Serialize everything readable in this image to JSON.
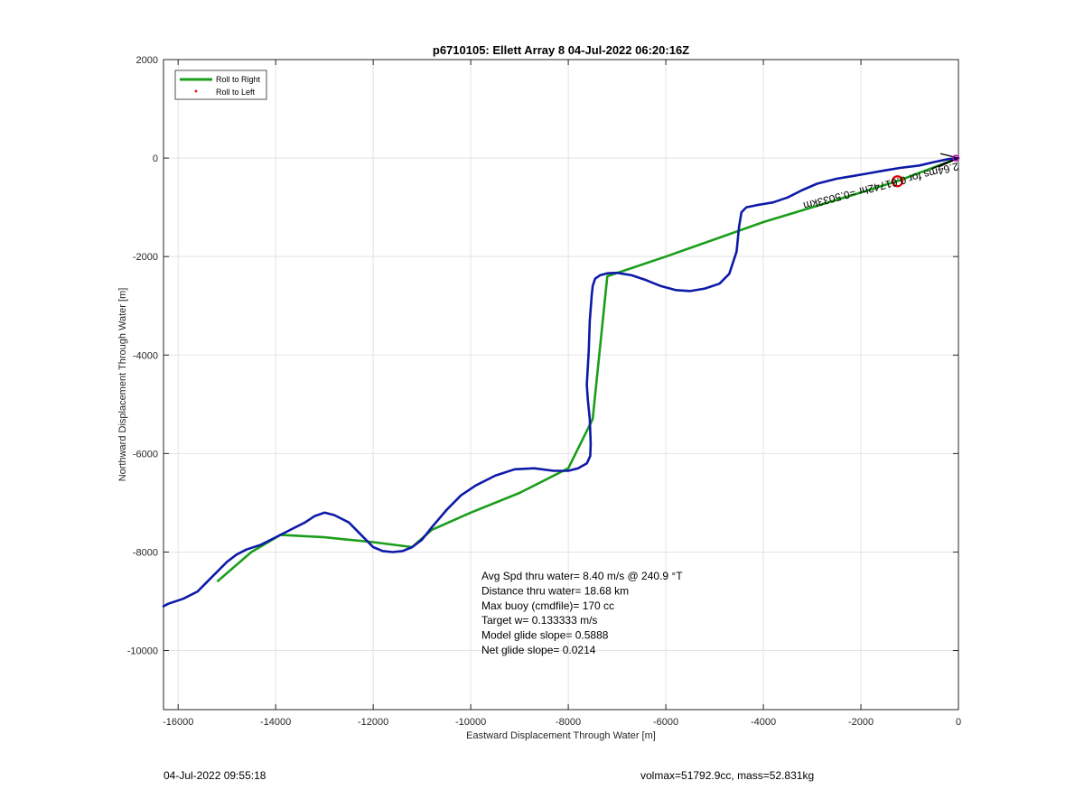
{
  "chart_data": {
    "type": "line",
    "title": "p6710105: Ellett Array 8 04-Jul-2022 06:20:16Z",
    "xlabel": "Eastward Displacement Through Water [m]",
    "ylabel": "Northward Displacement Through Water [m]",
    "xlim": [
      -16300,
      0
    ],
    "ylim": [
      -11200,
      2000
    ],
    "xticks": [
      -16000,
      -14000,
      -12000,
      -10000,
      -8000,
      -6000,
      -4000,
      -2000,
      0
    ],
    "yticks": [
      2000,
      0,
      -2000,
      -4000,
      -6000,
      -8000,
      -10000
    ],
    "grid": true,
    "legend_position": "top-left",
    "legend": [
      "Roll to Right",
      "Roll to Left"
    ],
    "colors": {
      "roll_right": "#1a9e1a",
      "roll_left": "#ff0000",
      "track": "#0d1aa8",
      "surface_marker": "#e00000",
      "origin_marker": "#c000c0"
    },
    "series": [
      {
        "name": "Roll to Right",
        "x": [
          0,
          -1200,
          -2000,
          -3000,
          -4000,
          -5000,
          -6000,
          -7200,
          -7500,
          -8000,
          -9000,
          -10000,
          -10800,
          -11200,
          -12000,
          -13000,
          -13900,
          -14500,
          -15200
        ],
        "y": [
          0,
          -450,
          -700,
          -1000,
          -1300,
          -1650,
          -2000,
          -2400,
          -5300,
          -6300,
          -6800,
          -7200,
          -7550,
          -7900,
          -7800,
          -7700,
          -7650,
          -8000,
          -8600
        ]
      },
      {
        "name": "Track",
        "x": [
          0,
          -200,
          -500,
          -800,
          -1200,
          -1500,
          -1900,
          -2200,
          -2500,
          -2900,
          -3200,
          -3500,
          -3800,
          -4100,
          -4350,
          -4450,
          -4500,
          -4550,
          -4700,
          -4900,
          -5200,
          -5500,
          -5800,
          -6100,
          -6400,
          -6700,
          -7000,
          -7200,
          -7350,
          -7450,
          -7500,
          -7520,
          -7560,
          -7580,
          -7620,
          -7600,
          -7560,
          -7540,
          -7550,
          -7620,
          -7800,
          -8000,
          -8300,
          -8700,
          -9100,
          -9500,
          -9900,
          -10200,
          -10500,
          -10800,
          -11000,
          -11200,
          -11400,
          -11600,
          -11800,
          -12000,
          -12200,
          -12500,
          -12800,
          -13000,
          -13200,
          -13400,
          -13700,
          -14000,
          -14300,
          -14600,
          -14800,
          -15000,
          -15300,
          -15600,
          -15900,
          -16200,
          -16300
        ],
        "y": [
          0,
          -20,
          -80,
          -150,
          -200,
          -250,
          -320,
          -370,
          -420,
          -520,
          -650,
          -800,
          -900,
          -950,
          -1000,
          -1100,
          -1400,
          -1900,
          -2350,
          -2550,
          -2650,
          -2700,
          -2680,
          -2600,
          -2480,
          -2380,
          -2330,
          -2340,
          -2380,
          -2450,
          -2600,
          -2800,
          -3300,
          -3900,
          -4600,
          -4900,
          -5300,
          -5800,
          -6050,
          -6200,
          -6300,
          -6350,
          -6350,
          -6300,
          -6320,
          -6450,
          -6650,
          -6850,
          -7150,
          -7500,
          -7750,
          -7900,
          -7980,
          -8000,
          -7980,
          -7900,
          -7700,
          -7400,
          -7250,
          -7200,
          -7270,
          -7400,
          -7550,
          -7700,
          -7850,
          -7950,
          -8050,
          -8200,
          -8500,
          -8800,
          -8950,
          -9050,
          -9100
        ]
      },
      {
        "name": "Roll to Left",
        "x": [],
        "y": []
      }
    ],
    "markers": {
      "surface_position": {
        "x": -1250,
        "y": -470
      },
      "origin": {
        "x": 0,
        "y": 0
      }
    },
    "rotated_label": "2.64ms for 0.61742hr =0.5033km",
    "stats": [
      "Avg Spd thru water=  8.40 m/s @ 240.9 °T",
      "Distance thru water= 18.68 km",
      "Max buoy (cmdfile)= 170 cc",
      "Target w= 0.133333 m/s",
      "Model glide slope= 0.5888",
      "Net glide slope= 0.0214"
    ]
  },
  "footer": {
    "timestamp": "04-Jul-2022 09:55:18",
    "vol_mass": "volmax=51792.9cc, mass=52.831kg"
  }
}
